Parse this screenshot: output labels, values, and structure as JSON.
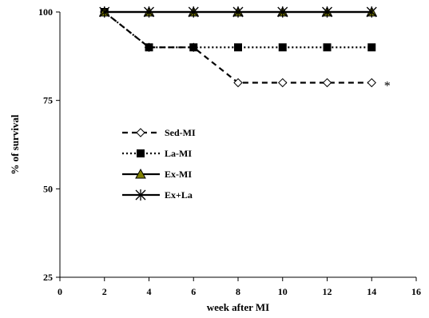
{
  "chart_data": {
    "type": "line",
    "title": "",
    "xlabel": "week after MI",
    "ylabel": "% of survival",
    "xlim": [
      0,
      16
    ],
    "ylim": [
      25,
      100
    ],
    "x_ticks": [
      0,
      2,
      4,
      6,
      8,
      10,
      12,
      14,
      16
    ],
    "y_ticks": [
      25,
      50,
      75,
      100
    ],
    "grid": false,
    "legend_position": "center-left",
    "series": [
      {
        "name": "Sed-MI",
        "x": [
          2,
          4,
          6,
          8,
          10,
          12,
          14
        ],
        "values": [
          100,
          90,
          90,
          80,
          80,
          80,
          80
        ],
        "line_style": "dashed",
        "marker": "open-diamond",
        "color": "#000000"
      },
      {
        "name": "La-MI",
        "x": [
          2,
          4,
          6,
          8,
          10,
          12,
          14
        ],
        "values": [
          100,
          90,
          90,
          90,
          90,
          90,
          90
        ],
        "line_style": "dotted",
        "marker": "filled-square",
        "color": "#000000"
      },
      {
        "name": "Ex-MI",
        "x": [
          2,
          4,
          6,
          8,
          10,
          12,
          14
        ],
        "values": [
          100,
          100,
          100,
          100,
          100,
          100,
          100
        ],
        "line_style": "solid",
        "marker": "triangle",
        "color": "#000000",
        "marker_fill": "#808000"
      },
      {
        "name": "Ex+La",
        "x": [
          2,
          4,
          6,
          8,
          10,
          12,
          14
        ],
        "values": [
          100,
          100,
          100,
          100,
          100,
          100,
          100
        ],
        "line_style": "solid",
        "marker": "star-x",
        "color": "#000000"
      }
    ],
    "annotations": [
      {
        "text": "*",
        "x": 14.7,
        "y": 80
      }
    ]
  }
}
